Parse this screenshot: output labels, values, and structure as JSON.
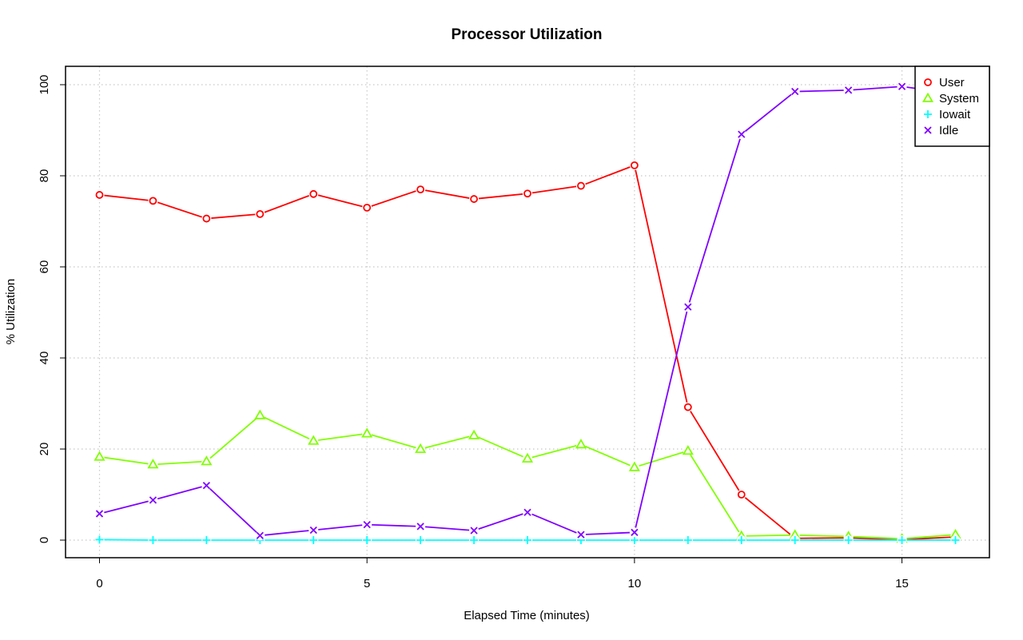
{
  "chart_data": {
    "type": "line",
    "title": "Processor Utilization",
    "xlabel": "Elapsed Time (minutes)",
    "ylabel": "% Utilization",
    "xlim": [
      0,
      16
    ],
    "ylim": [
      0,
      100
    ],
    "x_ticks": [
      0,
      5,
      10,
      15
    ],
    "y_ticks": [
      0,
      20,
      40,
      60,
      80,
      100
    ],
    "grid": true,
    "legend_position": "top-right",
    "x": [
      0,
      1,
      2,
      3,
      4,
      5,
      6,
      7,
      8,
      9,
      10,
      11,
      12,
      13,
      14,
      15,
      16
    ],
    "series": [
      {
        "name": "User",
        "color": "#ff0000",
        "marker": "circle",
        "values": [
          75.8,
          74.5,
          70.6,
          71.6,
          76.0,
          73.0,
          77.0,
          74.9,
          76.1,
          77.8,
          82.3,
          29.2,
          10.0,
          0.4,
          0.5,
          0.1,
          0.7
        ]
      },
      {
        "name": "System",
        "color": "#80ff00",
        "marker": "triangle",
        "values": [
          18.3,
          16.6,
          17.3,
          27.4,
          21.8,
          23.4,
          20.0,
          23.0,
          17.9,
          21.0,
          16.0,
          19.6,
          0.9,
          1.1,
          0.8,
          0.3,
          1.2
        ]
      },
      {
        "name": "Iowait",
        "color": "#00ffff",
        "marker": "plus",
        "values": [
          0.1,
          0.0,
          0.0,
          0.0,
          0.0,
          0.0,
          0.0,
          0.0,
          0.0,
          0.0,
          0.0,
          0.0,
          0.0,
          0.0,
          0.0,
          0.0,
          0.0
        ]
      },
      {
        "name": "Idle",
        "color": "#8000ff",
        "marker": "cross",
        "values": [
          5.8,
          8.8,
          12.0,
          1.0,
          2.2,
          3.4,
          3.0,
          2.1,
          6.1,
          1.2,
          1.7,
          51.2,
          89.1,
          98.5,
          98.8,
          99.6,
          98.0
        ]
      }
    ]
  }
}
